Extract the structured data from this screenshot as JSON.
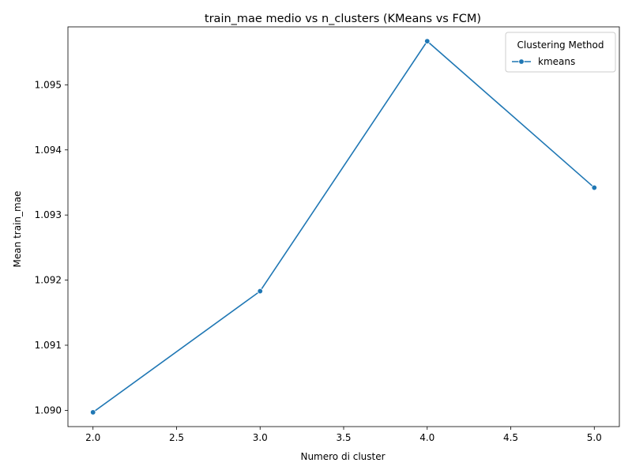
{
  "chart_data": {
    "type": "line",
    "title": "train_mae medio vs n_clusters (KMeans vs FCM)",
    "xlabel": "Numero di cluster",
    "ylabel": "Mean train_mae",
    "x": [
      2,
      3,
      4,
      5
    ],
    "series": [
      {
        "name": "kmeans",
        "values": [
          1.08997,
          1.09183,
          1.09567,
          1.09342
        ],
        "color": "#1f77b4"
      }
    ],
    "xlim": [
      1.85,
      5.15
    ],
    "ylim": [
      1.08975,
      1.09589
    ],
    "xticks": [
      2.0,
      2.5,
      3.0,
      3.5,
      4.0,
      4.5,
      5.0
    ],
    "xtick_labels": [
      "2.0",
      "2.5",
      "3.0",
      "3.5",
      "4.0",
      "4.5",
      "5.0"
    ],
    "yticks": [
      1.09,
      1.091,
      1.092,
      1.093,
      1.094,
      1.095
    ],
    "ytick_labels": [
      "1.090",
      "1.091",
      "1.092",
      "1.093",
      "1.094",
      "1.095"
    ],
    "legend": {
      "title": "Clustering Method",
      "position": "top-right"
    },
    "grid": false
  }
}
